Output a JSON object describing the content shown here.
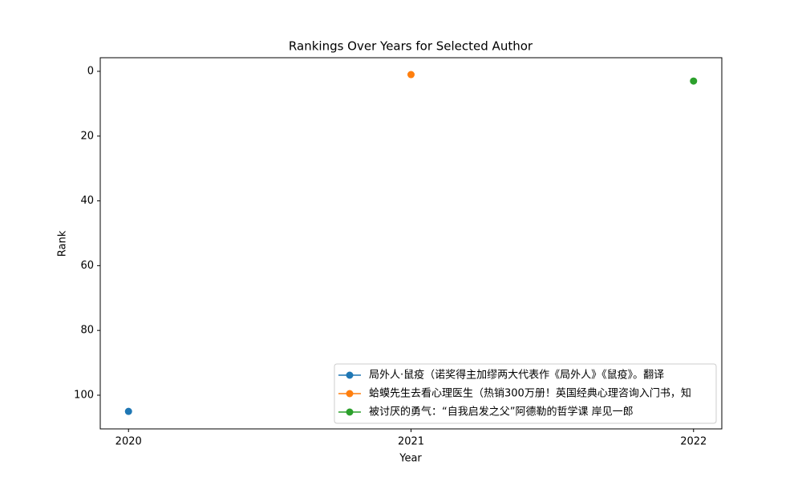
{
  "chart_data": {
    "type": "line",
    "title": "Rankings Over Years for Selected Author",
    "x_label": "Year",
    "y_label": "Rank",
    "x": [
      2020,
      2021,
      2022
    ],
    "series": [
      {
        "name": "局外人·鼠疫（诺奖得主加缪两大代表作《局外人》《鼠疫》。翻译",
        "color": "#1f77b4",
        "values": [
          105,
          null,
          null
        ]
      },
      {
        "name": "蛤蟆先生去看心理医生（热销300万册！英国经典心理咨询入门书，知",
        "color": "#ff7f0e",
        "values": [
          null,
          1,
          null
        ]
      },
      {
        "name": "被讨厌的勇气：“自我启发之父”阿德勒的哲学课 岸见一郎",
        "color": "#2ca02c",
        "values": [
          null,
          null,
          3
        ]
      }
    ],
    "xlim": [
      2019.9,
      2022.1
    ],
    "xticks": [
      2020,
      2021,
      2022
    ],
    "ylim": [
      110.4,
      -4.2
    ],
    "yticks": [
      0,
      20,
      40,
      60,
      80,
      100
    ],
    "legend": "lower right",
    "grid": false
  }
}
